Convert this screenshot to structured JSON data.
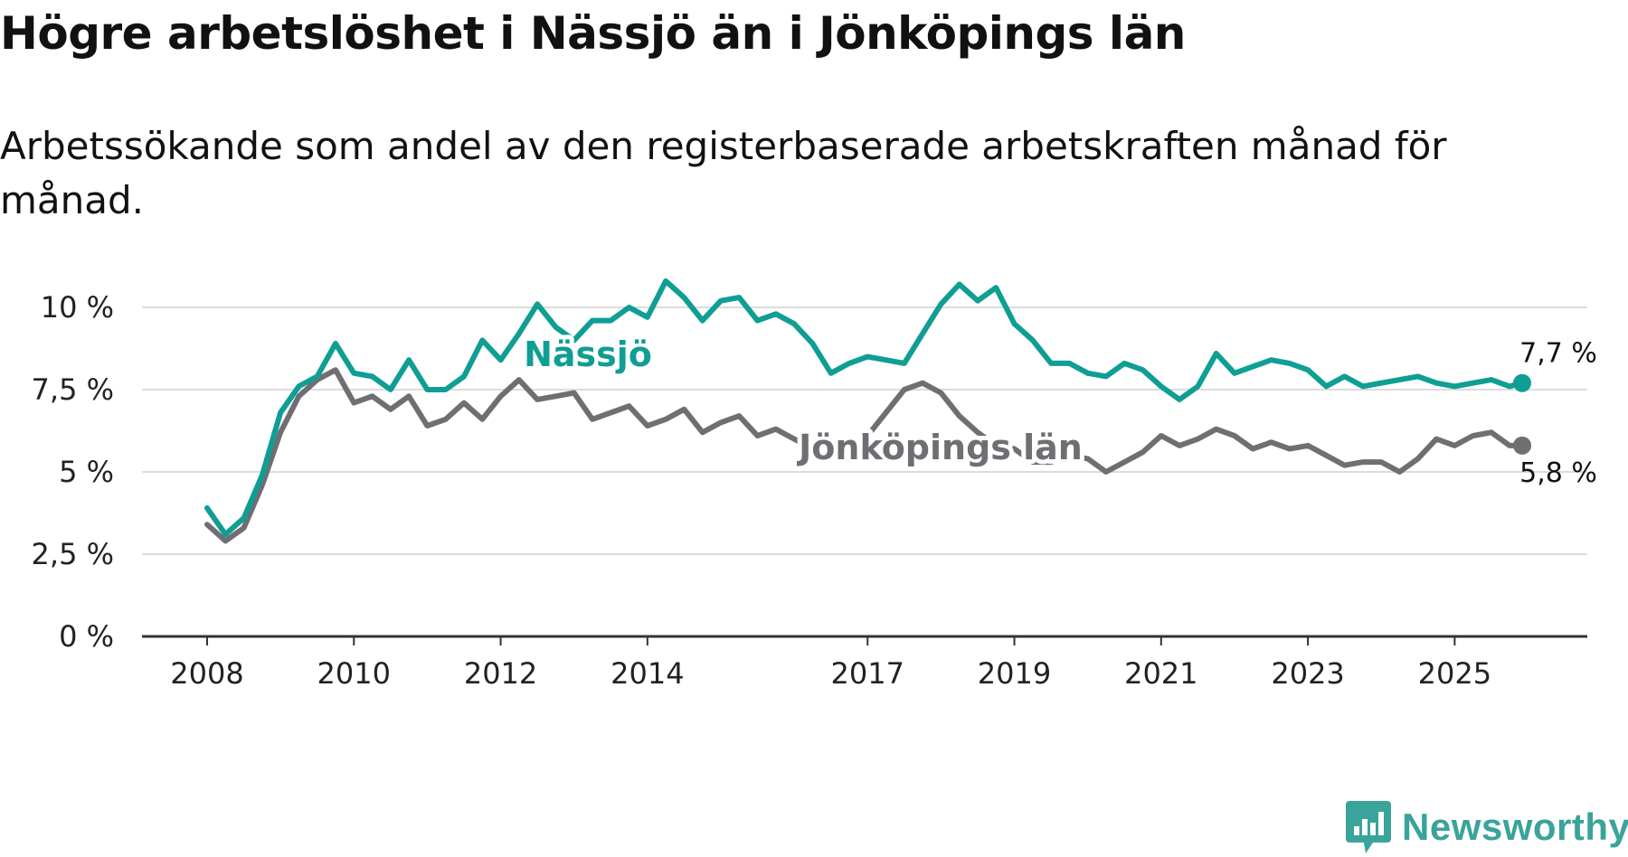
{
  "title": "Högre arbetslöshet i Nässjö än i Jönköpings län",
  "subtitle": "Arbetssökande som andel av den registerbaserade arbetskraften månad för månad.",
  "brand": {
    "name": "Newsworthy",
    "color": "#3aa39a"
  },
  "chart_data": {
    "type": "line",
    "title": "Högre arbetslöshet i Nässjö än i Jönköpings län",
    "subtitle": "Arbetssökande som andel av den registerbaserade arbetskraften månad för månad.",
    "xlabel": "",
    "ylabel": "",
    "ylim": [
      0,
      10
    ],
    "xlim": [
      2008.0,
      2025.92
    ],
    "yticks": [
      {
        "value": 0,
        "label": "0 %"
      },
      {
        "value": 2.5,
        "label": "2,5 %"
      },
      {
        "value": 5,
        "label": "5 %"
      },
      {
        "value": 7.5,
        "label": "7,5 %"
      },
      {
        "value": 10,
        "label": "10 %"
      }
    ],
    "xticks": [
      {
        "value": 2008,
        "label": "2008"
      },
      {
        "value": 2010,
        "label": "2010"
      },
      {
        "value": 2012,
        "label": "2012"
      },
      {
        "value": 2014,
        "label": "2014"
      },
      {
        "value": 2017,
        "label": "2017"
      },
      {
        "value": 2019,
        "label": "2019"
      },
      {
        "value": 2021,
        "label": "2021"
      },
      {
        "value": 2023,
        "label": "2023"
      },
      {
        "value": 2025,
        "label": "2025"
      }
    ],
    "grid": true,
    "series": [
      {
        "name": "Jönköpings län",
        "label": "Jönköpings län",
        "color": "#6e6e73",
        "end_label": "5,8 %",
        "x": [
          2008.0,
          2008.25,
          2008.5,
          2008.75,
          2009.0,
          2009.25,
          2009.5,
          2009.75,
          2010.0,
          2010.25,
          2010.5,
          2010.75,
          2011.0,
          2011.25,
          2011.5,
          2011.75,
          2012.0,
          2012.25,
          2012.5,
          2012.75,
          2013.0,
          2013.25,
          2013.5,
          2013.75,
          2014.0,
          2014.25,
          2014.5,
          2014.75,
          2015.0,
          2015.25,
          2015.5,
          2015.75,
          2016.0,
          2016.25,
          2016.5,
          2016.75,
          2017.0,
          2017.25,
          2017.5,
          2017.75,
          2018.0,
          2018.25,
          2018.5,
          2018.75,
          2019.0,
          2019.25,
          2019.5,
          2019.75,
          2020.0,
          2020.25,
          2020.5,
          2020.75,
          2021.0,
          2021.25,
          2021.5,
          2021.75,
          2022.0,
          2022.25,
          2022.5,
          2022.75,
          2023.0,
          2023.25,
          2023.5,
          2023.75,
          2024.0,
          2024.25,
          2024.5,
          2024.75,
          2025.0,
          2025.25,
          2025.5,
          2025.75,
          2025.92
        ],
        "values": [
          3.4,
          2.9,
          3.3,
          4.6,
          6.2,
          7.3,
          7.8,
          8.1,
          7.1,
          7.3,
          6.9,
          7.3,
          6.4,
          6.6,
          7.1,
          6.6,
          7.3,
          7.8,
          7.2,
          7.3,
          7.4,
          6.6,
          6.8,
          7.0,
          6.4,
          6.6,
          6.9,
          6.2,
          6.5,
          6.7,
          6.1,
          6.3,
          6.0,
          5.7,
          5.8,
          5.7,
          6.1,
          6.8,
          7.5,
          7.7,
          7.4,
          6.7,
          6.2,
          5.8,
          5.7,
          5.3,
          5.3,
          5.5,
          5.4,
          5.0,
          5.3,
          5.6,
          6.1,
          5.8,
          6.0,
          6.3,
          6.1,
          5.7,
          5.9,
          5.7,
          5.8,
          5.5,
          5.2,
          5.3,
          5.3,
          5.0,
          5.4,
          6.0,
          5.8,
          6.1,
          6.2,
          5.8,
          5.8
        ]
      },
      {
        "name": "Nässjö",
        "label": "Nässjö",
        "color": "#0f9e94",
        "end_label": "7,7 %",
        "x": [
          2008.0,
          2008.25,
          2008.5,
          2008.75,
          2009.0,
          2009.25,
          2009.5,
          2009.75,
          2010.0,
          2010.25,
          2010.5,
          2010.75,
          2011.0,
          2011.25,
          2011.5,
          2011.75,
          2012.0,
          2012.25,
          2012.5,
          2012.75,
          2013.0,
          2013.25,
          2013.5,
          2013.75,
          2014.0,
          2014.25,
          2014.5,
          2014.75,
          2015.0,
          2015.25,
          2015.5,
          2015.75,
          2016.0,
          2016.25,
          2016.5,
          2016.75,
          2017.0,
          2017.25,
          2017.5,
          2017.75,
          2018.0,
          2018.25,
          2018.5,
          2018.75,
          2019.0,
          2019.25,
          2019.5,
          2019.75,
          2020.0,
          2020.25,
          2020.5,
          2020.75,
          2021.0,
          2021.25,
          2021.5,
          2021.75,
          2022.0,
          2022.25,
          2022.5,
          2022.75,
          2023.0,
          2023.25,
          2023.5,
          2023.75,
          2024.0,
          2024.25,
          2024.5,
          2024.75,
          2025.0,
          2025.25,
          2025.5,
          2025.75,
          2025.92
        ],
        "values": [
          3.9,
          3.1,
          3.6,
          4.9,
          6.8,
          7.6,
          7.9,
          8.9,
          8.0,
          7.9,
          7.5,
          8.4,
          7.5,
          7.5,
          7.9,
          9.0,
          8.4,
          9.2,
          10.1,
          9.4,
          9.0,
          9.6,
          9.6,
          10.0,
          9.7,
          10.8,
          10.3,
          9.6,
          10.2,
          10.3,
          9.6,
          9.8,
          9.5,
          8.9,
          8.0,
          8.3,
          8.5,
          8.4,
          8.3,
          9.2,
          10.1,
          10.7,
          10.2,
          10.6,
          9.5,
          9.0,
          8.3,
          8.3,
          8.0,
          7.9,
          8.3,
          8.1,
          7.6,
          7.2,
          7.6,
          8.6,
          8.0,
          8.2,
          8.4,
          8.3,
          8.1,
          7.6,
          7.9,
          7.6,
          7.7,
          7.8,
          7.9,
          7.7,
          7.6,
          7.7,
          7.8,
          7.6,
          7.7
        ]
      }
    ]
  }
}
